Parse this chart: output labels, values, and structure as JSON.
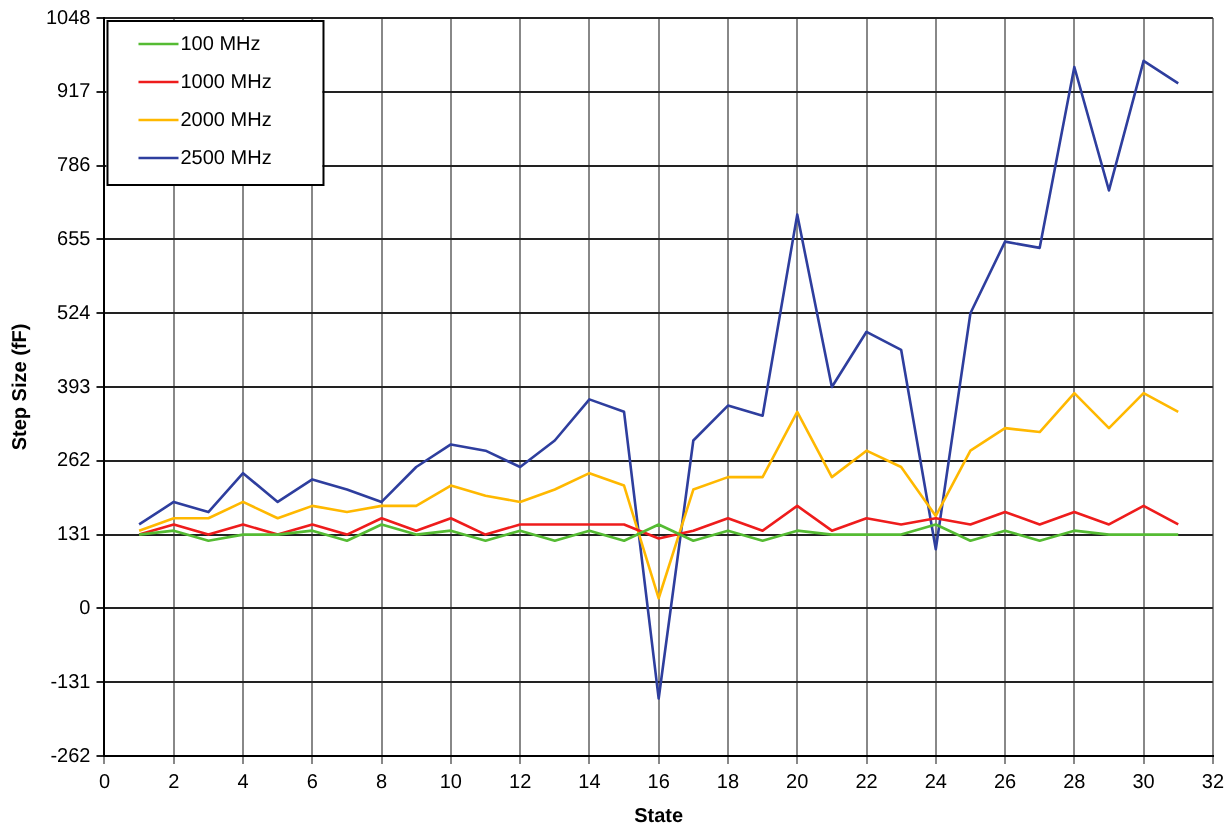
{
  "chart_data": {
    "type": "line",
    "xlabel": "State",
    "ylabel": "Step Size (fF)",
    "x": [
      1,
      2,
      3,
      4,
      5,
      6,
      7,
      8,
      9,
      10,
      11,
      12,
      13,
      14,
      15,
      16,
      17,
      18,
      19,
      20,
      21,
      22,
      23,
      24,
      25,
      26,
      27,
      28,
      29,
      30,
      31
    ],
    "series": [
      {
        "name": "100 MHz",
        "color": "#55bb33",
        "values": [
          131,
          138,
          120,
          131,
          131,
          138,
          120,
          149,
          131,
          138,
          120,
          138,
          120,
          138,
          120,
          149,
          120,
          138,
          120,
          138,
          131,
          131,
          131,
          149,
          120,
          138,
          120,
          138,
          131,
          131,
          131
        ]
      },
      {
        "name": "1000 MHz",
        "color": "#ee1c1c",
        "values": [
          131,
          149,
          131,
          149,
          131,
          149,
          131,
          160,
          138,
          160,
          131,
          149,
          149,
          149,
          149,
          124,
          138,
          160,
          138,
          182,
          138,
          160,
          149,
          160,
          149,
          171,
          149,
          171,
          149,
          182,
          149
        ]
      },
      {
        "name": "2000 MHz",
        "color": "#ffb800",
        "values": [
          138,
          160,
          160,
          189,
          160,
          182,
          171,
          182,
          182,
          218,
          200,
          189,
          211,
          240,
          218,
          18,
          211,
          233,
          233,
          349,
          233,
          280,
          251,
          164,
          280,
          320,
          313,
          382,
          320,
          382,
          349
        ]
      },
      {
        "name": "2500 MHz",
        "color": "#2e3e9e",
        "values": [
          149,
          189,
          171,
          240,
          189,
          229,
          211,
          189,
          251,
          291,
          280,
          251,
          298,
          371,
          349,
          -160,
          298,
          360,
          342,
          699,
          393,
          491,
          459,
          105,
          524,
          651,
          640,
          961,
          742,
          972,
          932
        ]
      }
    ],
    "xlim": [
      0,
      32
    ],
    "xticks": [
      0,
      2,
      4,
      6,
      8,
      10,
      12,
      14,
      16,
      18,
      20,
      22,
      24,
      26,
      28,
      30,
      32
    ],
    "ylim": [
      -262,
      1048
    ],
    "yticks": [
      -262,
      -131,
      0,
      131,
      262,
      393,
      524,
      655,
      786,
      917,
      1048
    ],
    "grid": true,
    "legend": "top left",
    "marker": "none",
    "line_style": "solid"
  }
}
